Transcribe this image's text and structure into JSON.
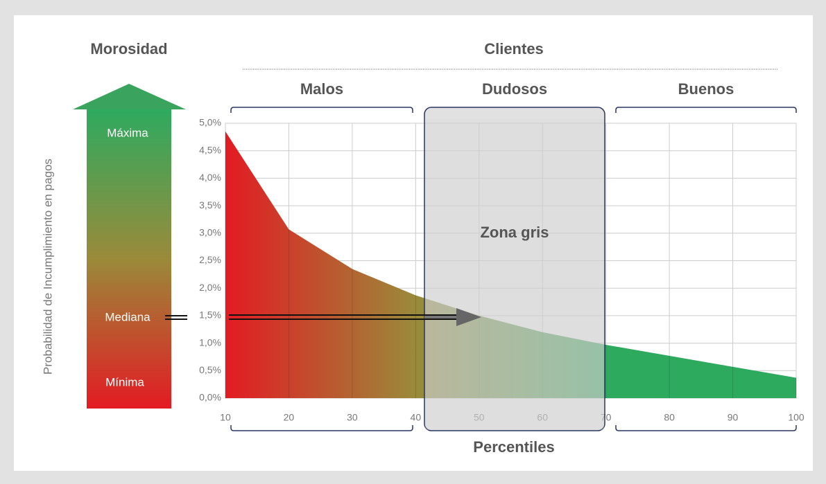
{
  "chart_data": {
    "type": "area",
    "title": "Clientes",
    "left_title": "Morosidad",
    "ylabel": "Probabilidad de Incumplimiento en pagos",
    "xlabel": "Percentiles",
    "groups": [
      "Malos",
      "Dudosos",
      "Buenos"
    ],
    "zone_label": "Zona gris",
    "scale_labels": [
      "Máxima",
      "Mediana",
      "Mínima"
    ],
    "x": [
      10,
      20,
      30,
      40,
      50,
      60,
      70,
      80,
      90,
      100
    ],
    "values": [
      4.85,
      3.07,
      2.35,
      1.87,
      1.5,
      1.2,
      0.97,
      0.77,
      0.57,
      0.37
    ],
    "xlim": [
      10,
      100
    ],
    "ylim": [
      0,
      5
    ],
    "xticks": [
      10,
      20,
      30,
      40,
      50,
      60,
      70,
      80,
      90,
      100
    ],
    "yticks": [
      {
        "value": 0,
        "label": "0,0%"
      },
      {
        "value": 0.5,
        "label": "0,5%"
      },
      {
        "value": 1,
        "label": "1,0%"
      },
      {
        "value": 1.5,
        "label": "1,5%"
      },
      {
        "value": 2,
        "label": "2,0%"
      },
      {
        "value": 2.5,
        "label": "2,5%"
      },
      {
        "value": 3,
        "label": "3,0%"
      },
      {
        "value": 3.5,
        "label": "3,5%"
      },
      {
        "value": 4,
        "label": "4,0%"
      },
      {
        "value": 4.5,
        "label": "4,5%"
      },
      {
        "value": 5,
        "label": "5,0%"
      }
    ],
    "grid": true,
    "colors": [
      "#e31b23",
      "#9a8a3a",
      "#2eaa5f"
    ]
  }
}
